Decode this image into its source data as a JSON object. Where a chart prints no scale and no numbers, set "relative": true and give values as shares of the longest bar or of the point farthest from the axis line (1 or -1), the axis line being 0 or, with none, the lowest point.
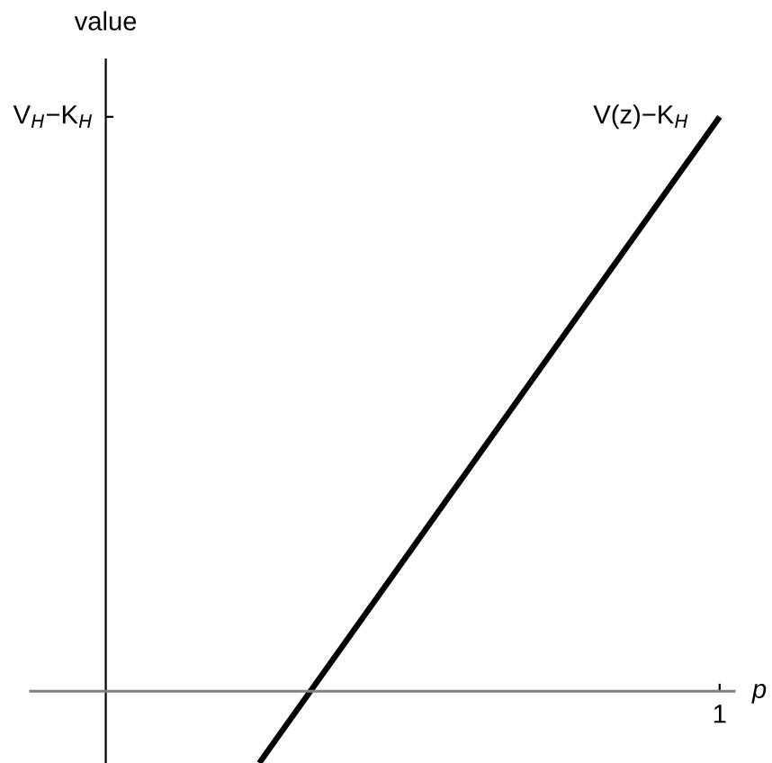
{
  "chart_data": {
    "type": "line",
    "xlabel": "p",
    "ylabel": "value",
    "relative": true,
    "categories": [
      null,
      null,
      null,
      null,
      null
    ],
    "series": [
      {
        "name": "V(z)−K$_{H}$",
        "color": "#000000",
        "values": [
          null,
          -0.125,
          0.25,
          0.625,
          1
        ]
      }
    ],
    "annotations": [
      "V$_{H}$−K$_{H}$",
      "1"
    ]
  }
}
